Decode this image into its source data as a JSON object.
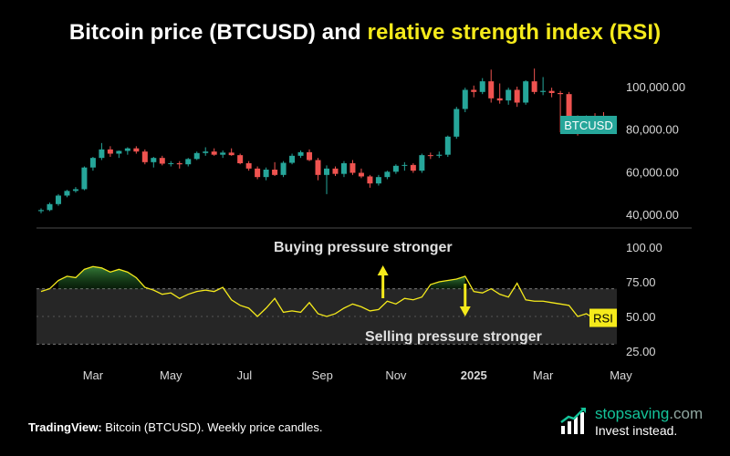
{
  "title": {
    "part1": "Bitcoin price (BTCUSD) and",
    "part2": "relative strength index (RSI)"
  },
  "caption": {
    "source": "TradingView:",
    "text": "Bitcoin (BTCUSD). Weekly price candles."
  },
  "brand": {
    "name_main": "stopsaving",
    "name_tld": ".com",
    "tagline": "Invest instead.",
    "icon": "bar-chart-growth-icon"
  },
  "colors": {
    "background": "#000000",
    "title_accent": "#f5ea1b",
    "up_candle": "#26a69a",
    "down_candle": "#ef5350",
    "rsi_line": "#f5ea1b",
    "price_badge": "#26a69a",
    "brand": "#14c49a"
  },
  "chart_data": [
    {
      "type": "candlestick",
      "series_label": "BTCUSD",
      "badge_value": 82000,
      "ylim": [
        37000,
        108000
      ],
      "yticks": [
        40000,
        60000,
        80000,
        100000
      ],
      "ytick_labels": [
        "40,000.00",
        "60,000.00",
        "80,000.00",
        "100,000.00"
      ],
      "xlim": [
        0,
        66
      ],
      "candles": [
        {
          "o": 41500,
          "h": 42800,
          "l": 40500,
          "c": 42000
        },
        {
          "o": 42000,
          "h": 45500,
          "l": 41500,
          "c": 44800
        },
        {
          "o": 44800,
          "h": 49500,
          "l": 44000,
          "c": 48800
        },
        {
          "o": 48800,
          "h": 51500,
          "l": 48000,
          "c": 51000
        },
        {
          "o": 51000,
          "h": 52800,
          "l": 50200,
          "c": 51800
        },
        {
          "o": 51800,
          "h": 62500,
          "l": 51300,
          "c": 62000
        },
        {
          "o": 62000,
          "h": 67000,
          "l": 60500,
          "c": 66500
        },
        {
          "o": 66500,
          "h": 73500,
          "l": 65500,
          "c": 70500
        },
        {
          "o": 70500,
          "h": 72000,
          "l": 67000,
          "c": 68500
        },
        {
          "o": 68500,
          "h": 70000,
          "l": 66500,
          "c": 69800
        },
        {
          "o": 69800,
          "h": 71500,
          "l": 68000,
          "c": 71000
        },
        {
          "o": 71000,
          "h": 72000,
          "l": 68500,
          "c": 69500
        },
        {
          "o": 69500,
          "h": 70500,
          "l": 63500,
          "c": 64500
        },
        {
          "o": 64500,
          "h": 67000,
          "l": 62000,
          "c": 66500
        },
        {
          "o": 66500,
          "h": 67500,
          "l": 63000,
          "c": 63800
        },
        {
          "o": 63800,
          "h": 65000,
          "l": 62500,
          "c": 64000
        },
        {
          "o": 64000,
          "h": 65000,
          "l": 61500,
          "c": 63500
        },
        {
          "o": 63500,
          "h": 66500,
          "l": 62500,
          "c": 66000
        },
        {
          "o": 66000,
          "h": 69500,
          "l": 65500,
          "c": 68800
        },
        {
          "o": 68800,
          "h": 71500,
          "l": 67500,
          "c": 69500
        },
        {
          "o": 69500,
          "h": 71000,
          "l": 67500,
          "c": 68000
        },
        {
          "o": 68000,
          "h": 70000,
          "l": 66500,
          "c": 69000
        },
        {
          "o": 69000,
          "h": 71000,
          "l": 67500,
          "c": 67800
        },
        {
          "o": 67800,
          "h": 68500,
          "l": 63500,
          "c": 64000
        },
        {
          "o": 64000,
          "h": 65000,
          "l": 60500,
          "c": 61500
        },
        {
          "o": 61500,
          "h": 62500,
          "l": 56500,
          "c": 57500
        },
        {
          "o": 57500,
          "h": 62000,
          "l": 56000,
          "c": 61000
        },
        {
          "o": 61000,
          "h": 64500,
          "l": 58000,
          "c": 58500
        },
        {
          "o": 58500,
          "h": 65000,
          "l": 57500,
          "c": 64200
        },
        {
          "o": 64200,
          "h": 68500,
          "l": 63500,
          "c": 67500
        },
        {
          "o": 67500,
          "h": 70000,
          "l": 66500,
          "c": 69200
        },
        {
          "o": 69200,
          "h": 70500,
          "l": 65000,
          "c": 65500
        },
        {
          "o": 65500,
          "h": 66500,
          "l": 56000,
          "c": 58500
        },
        {
          "o": 58500,
          "h": 63000,
          "l": 49500,
          "c": 61500
        },
        {
          "o": 61500,
          "h": 62500,
          "l": 58000,
          "c": 59000
        },
        {
          "o": 59000,
          "h": 65000,
          "l": 57500,
          "c": 64000
        },
        {
          "o": 64000,
          "h": 65500,
          "l": 58500,
          "c": 59500
        },
        {
          "o": 59500,
          "h": 61500,
          "l": 57000,
          "c": 57800
        },
        {
          "o": 57800,
          "h": 58500,
          "l": 52500,
          "c": 54500
        },
        {
          "o": 54500,
          "h": 58500,
          "l": 53500,
          "c": 57500
        },
        {
          "o": 57500,
          "h": 60500,
          "l": 56500,
          "c": 60000
        },
        {
          "o": 60000,
          "h": 63500,
          "l": 59000,
          "c": 62800
        },
        {
          "o": 62800,
          "h": 64500,
          "l": 60500,
          "c": 63200
        },
        {
          "o": 63200,
          "h": 64000,
          "l": 59500,
          "c": 60500
        },
        {
          "o": 60500,
          "h": 68500,
          "l": 59500,
          "c": 67800
        },
        {
          "o": 67800,
          "h": 69000,
          "l": 66000,
          "c": 67500
        },
        {
          "o": 67500,
          "h": 69500,
          "l": 66500,
          "c": 68000
        },
        {
          "o": 68000,
          "h": 77000,
          "l": 67000,
          "c": 76500
        },
        {
          "o": 76500,
          "h": 90500,
          "l": 75500,
          "c": 89500
        },
        {
          "o": 89500,
          "h": 99500,
          "l": 88000,
          "c": 98500
        },
        {
          "o": 98500,
          "h": 100500,
          "l": 95000,
          "c": 97500
        },
        {
          "o": 97500,
          "h": 104000,
          "l": 96500,
          "c": 102500
        },
        {
          "o": 102500,
          "h": 108000,
          "l": 92500,
          "c": 94500
        },
        {
          "o": 94500,
          "h": 101500,
          "l": 92000,
          "c": 93500
        },
        {
          "o": 93500,
          "h": 99500,
          "l": 91500,
          "c": 98500
        },
        {
          "o": 98500,
          "h": 100000,
          "l": 90500,
          "c": 92500
        },
        {
          "o": 92500,
          "h": 103000,
          "l": 91500,
          "c": 102500
        },
        {
          "o": 102500,
          "h": 108500,
          "l": 96500,
          "c": 97500
        },
        {
          "o": 97500,
          "h": 104500,
          "l": 96000,
          "c": 98000
        },
        {
          "o": 98000,
          "h": 99500,
          "l": 95000,
          "c": 97000
        },
        {
          "o": 97000,
          "h": 98000,
          "l": 78500,
          "c": 96500
        },
        {
          "o": 96500,
          "h": 97500,
          "l": 78000,
          "c": 84500
        },
        {
          "o": 84500,
          "h": 86500,
          "l": 77000,
          "c": 81500
        },
        {
          "o": 81500,
          "h": 86500,
          "l": 79000,
          "c": 85500
        },
        {
          "o": 85500,
          "h": 87500,
          "l": 81500,
          "c": 84000
        },
        {
          "o": 84000,
          "h": 88000,
          "l": 81000,
          "c": 82500
        }
      ]
    },
    {
      "type": "line",
      "series_label": "RSI",
      "ylim": [
        20,
        105
      ],
      "yticks": [
        25,
        50,
        75,
        100
      ],
      "ytick_labels": [
        "25.00",
        "50.00",
        "75.00",
        "100.00"
      ],
      "band": [
        30,
        70
      ],
      "xlim": [
        0,
        66
      ],
      "x_tick_labels": [
        {
          "label": "Mar",
          "pos": 6
        },
        {
          "label": "May",
          "pos": 15
        },
        {
          "label": "Jul",
          "pos": 23.5
        },
        {
          "label": "Sep",
          "pos": 32.5
        },
        {
          "label": "Nov",
          "pos": 41
        },
        {
          "label": "2025",
          "pos": 50,
          "bold": true
        },
        {
          "label": "Mar",
          "pos": 58
        },
        {
          "label": "May",
          "pos": 67
        }
      ],
      "values": [
        68,
        70,
        76,
        79,
        78,
        84,
        86,
        85,
        82,
        84,
        82,
        78,
        71,
        69,
        66,
        67,
        63,
        66,
        68,
        69,
        68,
        71,
        62,
        58,
        56,
        50,
        56,
        63,
        53,
        54,
        53,
        60,
        52,
        50,
        52,
        56,
        59,
        57,
        54,
        55,
        61,
        59,
        63,
        62,
        64,
        73,
        75,
        76,
        77,
        79,
        68,
        67,
        70,
        66,
        64,
        74,
        62,
        61,
        61,
        60,
        59,
        58,
        50,
        52,
        48,
        49
      ],
      "annotations": [
        {
          "text": "Buying pressure stronger",
          "direction": "up",
          "x": 39.5
        },
        {
          "text": "Selling pressure stronger",
          "direction": "down",
          "x": 49
        }
      ],
      "badge": "RSI"
    }
  ]
}
